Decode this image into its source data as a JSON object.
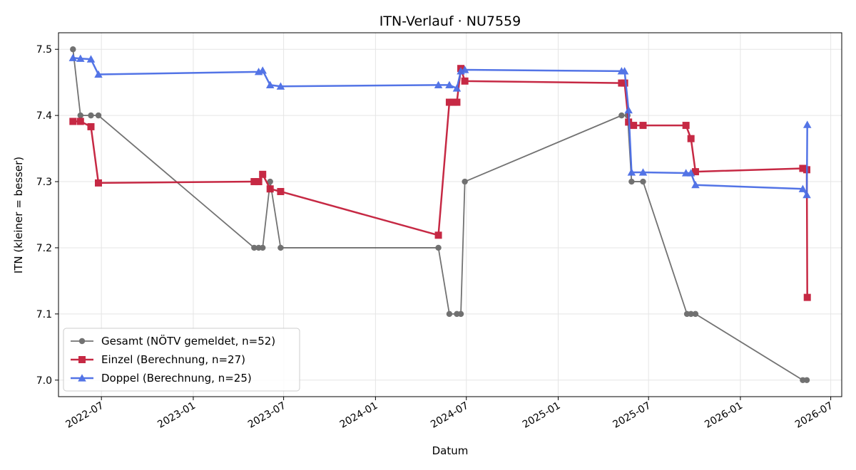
{
  "chart_data": {
    "type": "line",
    "title": "ITN-Verlauf · NU7559",
    "xlabel": "Datum",
    "ylabel": "ITN  (kleiner = besser)",
    "x_axis": "date",
    "xlim": [
      "2022-04-06",
      "2026-07-23"
    ],
    "ylim": [
      6.975,
      7.525
    ],
    "x_ticks": [
      {
        "date": "2022-07-01",
        "label": "2022-07"
      },
      {
        "date": "2023-01-01",
        "label": "2023-01"
      },
      {
        "date": "2023-07-01",
        "label": "2023-07"
      },
      {
        "date": "2024-01-01",
        "label": "2024-01"
      },
      {
        "date": "2024-07-01",
        "label": "2024-07"
      },
      {
        "date": "2025-01-01",
        "label": "2025-01"
      },
      {
        "date": "2025-07-01",
        "label": "2025-07"
      },
      {
        "date": "2026-01-01",
        "label": "2026-01"
      },
      {
        "date": "2026-07-01",
        "label": "2026-07"
      }
    ],
    "y_ticks": [
      {
        "value": 7.0,
        "label": "7.0"
      },
      {
        "value": 7.1,
        "label": "7.1"
      },
      {
        "value": 7.2,
        "label": "7.2"
      },
      {
        "value": 7.3,
        "label": "7.3"
      },
      {
        "value": 7.4,
        "label": "7.4"
      },
      {
        "value": 7.5,
        "label": "7.5"
      }
    ],
    "grid": true,
    "legend_position": "lower-left",
    "series": [
      {
        "name": "Gesamt (NÖTV gemeldet, n=52)",
        "color": "#444444",
        "marker": "circle",
        "points": [
          {
            "x": "2022-05-05",
            "y": 7.5
          },
          {
            "x": "2022-05-20",
            "y": 7.4
          },
          {
            "x": "2022-06-10",
            "y": 7.4
          },
          {
            "x": "2022-06-25",
            "y": 7.4
          },
          {
            "x": "2023-05-03",
            "y": 7.2
          },
          {
            "x": "2023-05-12",
            "y": 7.2
          },
          {
            "x": "2023-05-20",
            "y": 7.2
          },
          {
            "x": "2023-06-04",
            "y": 7.3
          },
          {
            "x": "2023-06-25",
            "y": 7.2
          },
          {
            "x": "2024-05-06",
            "y": 7.2
          },
          {
            "x": "2024-05-28",
            "y": 7.1
          },
          {
            "x": "2024-06-12",
            "y": 7.1
          },
          {
            "x": "2024-06-20",
            "y": 7.1
          },
          {
            "x": "2024-06-28",
            "y": 7.3
          },
          {
            "x": "2025-05-08",
            "y": 7.4
          },
          {
            "x": "2025-05-20",
            "y": 7.4
          },
          {
            "x": "2025-05-28",
            "y": 7.3
          },
          {
            "x": "2025-06-20",
            "y": 7.3
          },
          {
            "x": "2025-09-16",
            "y": 7.1
          },
          {
            "x": "2025-09-24",
            "y": 7.1
          },
          {
            "x": "2025-10-03",
            "y": 7.1
          },
          {
            "x": "2026-05-06",
            "y": 7.0
          },
          {
            "x": "2026-05-14",
            "y": 7.0
          }
        ]
      },
      {
        "name": "Einzel (Berechnung, n=27)",
        "color": "#c41e3a",
        "marker": "square",
        "points": [
          {
            "x": "2022-05-05",
            "y": 7.391
          },
          {
            "x": "2022-05-20",
            "y": 7.391
          },
          {
            "x": "2022-06-10",
            "y": 7.383
          },
          {
            "x": "2022-06-25",
            "y": 7.298
          },
          {
            "x": "2023-05-03",
            "y": 7.3
          },
          {
            "x": "2023-05-12",
            "y": 7.3
          },
          {
            "x": "2023-05-20",
            "y": 7.311
          },
          {
            "x": "2023-06-04",
            "y": 7.289
          },
          {
            "x": "2023-06-25",
            "y": 7.285
          },
          {
            "x": "2024-05-06",
            "y": 7.219
          },
          {
            "x": "2024-05-28",
            "y": 7.42
          },
          {
            "x": "2024-06-05",
            "y": 7.42
          },
          {
            "x": "2024-06-12",
            "y": 7.42
          },
          {
            "x": "2024-06-20",
            "y": 7.471
          },
          {
            "x": "2024-06-28",
            "y": 7.452
          },
          {
            "x": "2025-05-08",
            "y": 7.449
          },
          {
            "x": "2025-05-14",
            "y": 7.449
          },
          {
            "x": "2025-05-22",
            "y": 7.39
          },
          {
            "x": "2025-06-01",
            "y": 7.385
          },
          {
            "x": "2025-06-20",
            "y": 7.385
          },
          {
            "x": "2025-09-14",
            "y": 7.385
          },
          {
            "x": "2025-09-24",
            "y": 7.365
          },
          {
            "x": "2025-10-03",
            "y": 7.315
          },
          {
            "x": "2026-05-06",
            "y": 7.32
          },
          {
            "x": "2026-05-14",
            "y": 7.318
          },
          {
            "x": "2026-05-15",
            "y": 7.125
          }
        ]
      },
      {
        "name": "Doppel (Berechnung, n=25)",
        "color": "#4a6de5",
        "marker": "triangle",
        "points": [
          {
            "x": "2022-05-05",
            "y": 7.487
          },
          {
            "x": "2022-05-20",
            "y": 7.486
          },
          {
            "x": "2022-06-10",
            "y": 7.485
          },
          {
            "x": "2022-06-25",
            "y": 7.462
          },
          {
            "x": "2023-05-12",
            "y": 7.466
          },
          {
            "x": "2023-05-20",
            "y": 7.468
          },
          {
            "x": "2023-06-04",
            "y": 7.446
          },
          {
            "x": "2023-06-25",
            "y": 7.444
          },
          {
            "x": "2024-05-06",
            "y": 7.446
          },
          {
            "x": "2024-05-28",
            "y": 7.446
          },
          {
            "x": "2024-06-12",
            "y": 7.441
          },
          {
            "x": "2024-06-20",
            "y": 7.467
          },
          {
            "x": "2024-06-28",
            "y": 7.469
          },
          {
            "x": "2025-05-08",
            "y": 7.467
          },
          {
            "x": "2025-05-14",
            "y": 7.467
          },
          {
            "x": "2025-05-22",
            "y": 7.408
          },
          {
            "x": "2025-05-28",
            "y": 7.314
          },
          {
            "x": "2025-06-20",
            "y": 7.314
          },
          {
            "x": "2025-09-14",
            "y": 7.313
          },
          {
            "x": "2025-09-24",
            "y": 7.313
          },
          {
            "x": "2025-10-03",
            "y": 7.295
          },
          {
            "x": "2026-05-06",
            "y": 7.289
          },
          {
            "x": "2026-05-14",
            "y": 7.28
          },
          {
            "x": "2026-05-15",
            "y": 7.386
          }
        ]
      }
    ]
  }
}
